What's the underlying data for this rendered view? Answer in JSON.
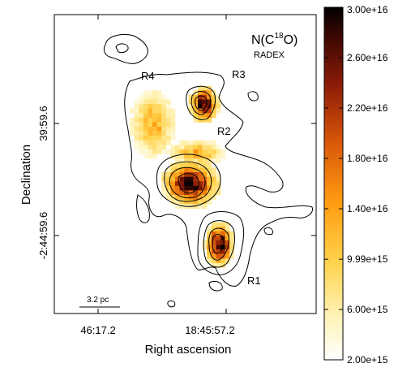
{
  "chart_data": {
    "type": "heatmap",
    "title": "N(C¹⁸O)",
    "title_main": "N(C",
    "title_sup": "18",
    "title_end": "O)",
    "subtitle": "RADEX",
    "xlabel": "Right ascension",
    "ylabel": "Declination",
    "x_ticks": [
      "46:17.2",
      "18:45:57.2"
    ],
    "y_ticks": [
      "39:59.6",
      "-2:44:59.6"
    ],
    "regions": [
      "R1",
      "R2",
      "R3",
      "R4"
    ],
    "scalebar_label": "3.2 pc",
    "colorbar": {
      "min": 2000000000000000.0,
      "max": 3e+16,
      "ticks": [
        "3.00e+16",
        "2.60e+16",
        "2.20e+16",
        "1.80e+16",
        "1.40e+16",
        "9.99e+15",
        "6.00e+15",
        "2.00e+15"
      ],
      "tick_values": [
        3e+16,
        2.6e+16,
        2.2e+16,
        1.8e+16,
        1.4e+16,
        9990000000000000.0,
        6000000000000000.0,
        2000000000000000.0
      ]
    },
    "grid": false,
    "legend": "colorbar-right"
  }
}
